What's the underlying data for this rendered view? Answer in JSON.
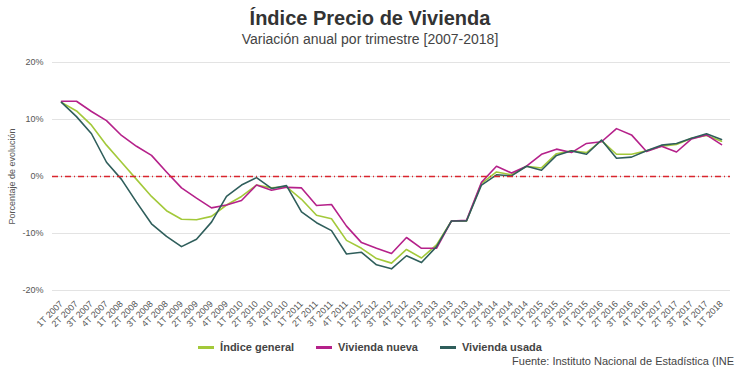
{
  "chart_data": {
    "type": "line",
    "title": "Índice Precio de Vivienda",
    "subtitle": "Variación anual por trimestre [2007-2018]",
    "y_label": "Porcentaje de evolución",
    "source": "Fuente: Instituto Nacional de Estadística (INE",
    "categories": [
      "1T 2007",
      "2T 2007",
      "3T 2007",
      "4T 2007",
      "1T 2008",
      "2T 2008",
      "3T 2008",
      "4T 2008",
      "1T 2009",
      "2T 2009",
      "3T 2009",
      "4T 2009",
      "1T 2010",
      "2T 2010",
      "3T 2010",
      "4T 2010",
      "1T 2011",
      "2T 2011",
      "3T 2011",
      "4T 2011",
      "1T 2012",
      "2T 2012",
      "3T 2012",
      "4T 2012",
      "1T 2013",
      "2T 2013",
      "3T 2013",
      "4T 2013",
      "1T 2014",
      "2T 2014",
      "3T 2014",
      "4T 2014",
      "1T 2015",
      "2T 2015",
      "3T 2015",
      "4T 2015",
      "1T 2016",
      "2T 2016",
      "3T 2016",
      "4T 2016",
      "1T 2017",
      "2T 2017",
      "3T 2017",
      "4T 2017",
      "1T 2018"
    ],
    "series": [
      {
        "name": "Índice general",
        "color": "#a3c93a",
        "values": [
          13,
          11.5,
          9,
          5.5,
          2.5,
          -0.5,
          -3.5,
          -6,
          -7.5,
          -7.6,
          -7,
          -5,
          -3.5,
          -1.5,
          -2,
          -1.8,
          -4,
          -6.8,
          -7.4,
          -11.2,
          -12.6,
          -14.4,
          -15.2,
          -12.8,
          -14.3,
          -12,
          -7.8,
          -7.8,
          -1.2,
          0.8,
          0.3,
          1.8,
          1.5,
          4,
          4.5,
          4.2,
          6.3,
          3.9,
          3.9,
          4.5,
          5.3,
          5.6,
          6.7,
          7.2,
          6.2
        ]
      },
      {
        "name": "Vivienda nueva",
        "color": "#b5218a",
        "values": [
          13.2,
          13.2,
          11.4,
          9.8,
          7.2,
          5.3,
          3.7,
          0.8,
          -2,
          -3.8,
          -5.5,
          -5,
          -4.2,
          -1.5,
          -2.4,
          -1.9,
          -2,
          -5.1,
          -4.9,
          -8.7,
          -11.6,
          -12.6,
          -13.5,
          -10.7,
          -12.6,
          -12.6,
          -7.8,
          -7.7,
          -1,
          1.8,
          0.6,
          1.8,
          3.9,
          4.8,
          4.2,
          5.8,
          6.1,
          8.4,
          7.3,
          4.4,
          5.3,
          4.3,
          6.6,
          7.3,
          5.6
        ]
      },
      {
        "name": "Vivienda usada",
        "color": "#2f5e5b",
        "values": [
          13,
          10.5,
          7.5,
          2.5,
          -0.5,
          -4.5,
          -8.3,
          -10.5,
          -12.3,
          -11,
          -8,
          -3.5,
          -1.5,
          -0.2,
          -2.1,
          -1.6,
          -6.2,
          -8.1,
          -9.5,
          -13.6,
          -13.3,
          -15.5,
          -16.2,
          -13.9,
          -15.1,
          -12.3,
          -7.8,
          -7.8,
          -1.5,
          0.3,
          0.1,
          1.8,
          1.1,
          3.7,
          4.5,
          3.9,
          6.4,
          3.2,
          3.4,
          4.5,
          5.5,
          5.8,
          6.7,
          7.5,
          6.5
        ]
      }
    ],
    "ylim": [
      -20,
      20
    ],
    "yticks": [
      {
        "value": -20,
        "label": "-20%"
      },
      {
        "value": -10,
        "label": "-10%"
      },
      {
        "value": 0,
        "label": "0%"
      },
      {
        "value": 10,
        "label": "10%"
      },
      {
        "value": 20,
        "label": "20%"
      }
    ],
    "reference_lines": [
      0
    ],
    "grid": true,
    "legend": "bottom"
  }
}
